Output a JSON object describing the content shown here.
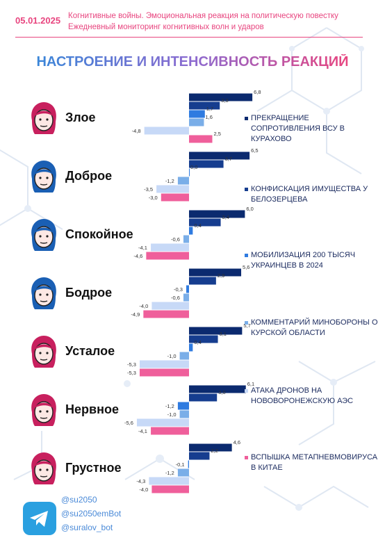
{
  "header": {
    "date": "05.01.2025",
    "line1": "Когнитивные войны. Эмоциональная реакция на политическую повестку",
    "line2": "Ежедневный мониторинг когнитивных волн и ударов"
  },
  "title": "НАСТРОЕНИЕ И ИНТЕНСИВНОСТЬ РЕАКЦИЙ",
  "colors": {
    "accent_pink": "#e8457f",
    "series": [
      "#0b2a6f",
      "#163d8f",
      "#2f7be0",
      "#7aaee8",
      "#c7d9f7",
      "#ef5f9b"
    ]
  },
  "moods": [
    {
      "label": "Злое",
      "face_color": "#c8205e"
    },
    {
      "label": "Доброе",
      "face_color": "#1a5fb4"
    },
    {
      "label": "Спокойное",
      "face_color": "#1a5fb4"
    },
    {
      "label": "Бодрое",
      "face_color": "#1a5fb4"
    },
    {
      "label": "Усталое",
      "face_color": "#c8205e"
    },
    {
      "label": "Нервное",
      "face_color": "#c8205e"
    },
    {
      "label": "Грустное",
      "face_color": "#c8205e"
    }
  ],
  "chart_data": {
    "type": "bar",
    "orientation": "horizontal",
    "categories": [
      "Злое",
      "Доброе",
      "Спокойное",
      "Бодрое",
      "Усталое",
      "Нервное",
      "Грустное"
    ],
    "series": [
      {
        "name": "ПРЕКРАЩЕНИЕ СОПРОТИВЛЕНИЯ ВСУ В КУРАХОВО",
        "values": [
          6.8,
          6.5,
          6.0,
          5.6,
          5.7,
          6.1,
          4.6
        ],
        "labels": [
          "6,8",
          "6,5",
          "6,0",
          "5,6",
          "5,7",
          "6,1",
          "4,6"
        ]
      },
      {
        "name": "КОНФИСКАЦИЯ ИМУЩЕСТВА У БЕЛОЗЕРЦЕВА",
        "values": [
          3.3,
          3.7,
          3.4,
          2.9,
          3.1,
          3.0,
          2.2
        ],
        "labels": [
          "3,3",
          "3,7",
          "3,4",
          "2,9",
          "3,1",
          "3,0",
          "2,2"
        ]
      },
      {
        "name": "МОБИЛИЗАЦИЯ 200 ТЫСЯЧ УКРАИНЦЕВ В 2024",
        "values": [
          1.7,
          0.0,
          0.4,
          -0.3,
          0.4,
          -1.2,
          -0.1
        ],
        "labels": [
          "1,7",
          "0,0",
          "0,4",
          "-0,3",
          "0,4",
          "-1,2",
          "-0,1"
        ]
      },
      {
        "name": "КОММЕНТАРИЙ МИНОБОРОНЫ О КУРСКОЙ ОБЛАСТИ",
        "values": [
          1.6,
          -1.2,
          -0.6,
          -0.6,
          -1.0,
          -1.0,
          -1.2
        ],
        "labels": [
          "1,6",
          "-1,2",
          "-0,6",
          "-0,6",
          "-1,0",
          "-1,0",
          "-1,2"
        ]
      },
      {
        "name": "АТАКА ДРОНОВ НА НОВОВОРОНЕЖСКУЮ АЭС",
        "values": [
          -4.8,
          -3.5,
          -4.1,
          -4.0,
          -5.3,
          -5.6,
          -4.3
        ],
        "labels": [
          "-4,8",
          "-3,5",
          "-4,1",
          "-4,0",
          "-5,3",
          "-5,6",
          "-4,3"
        ]
      },
      {
        "name": "ВСПЫШКА МЕТАПНЕВМОВИРУСА В КИТАЕ",
        "values": [
          2.5,
          -3.0,
          -4.6,
          -4.9,
          -5.3,
          -4.1,
          -4.0
        ],
        "labels": [
          "2,5",
          "-3,0",
          "-4,6",
          "-4,9",
          "-5,3",
          "-4,1",
          "-4,0"
        ]
      }
    ]
  },
  "footer": {
    "handles": [
      "@su2050",
      "@su2050emBot",
      "@suralov_bot"
    ]
  }
}
